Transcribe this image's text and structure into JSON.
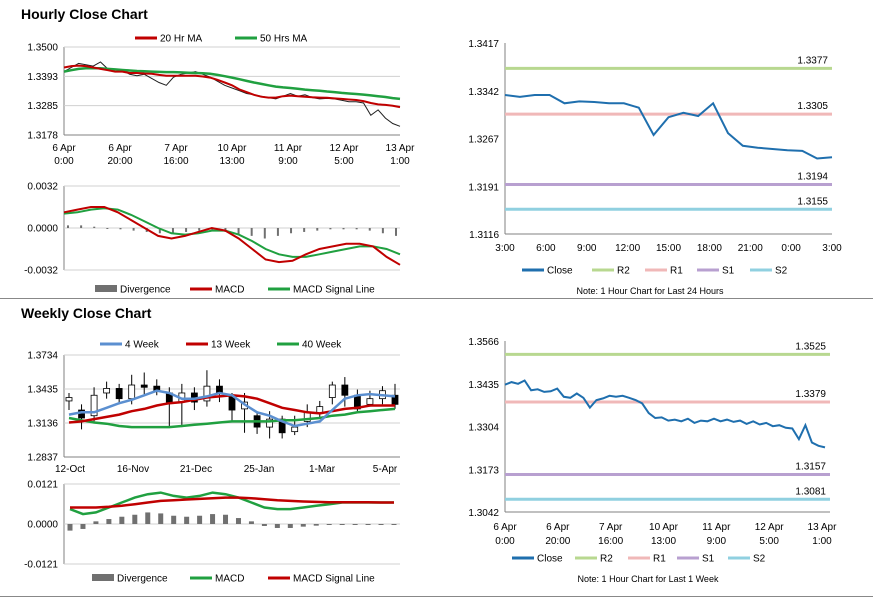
{
  "sections": {
    "hourly_title": "Hourly Close Chart",
    "weekly_title": "Weekly Close Chart"
  },
  "colors": {
    "close": "#1f6fae",
    "ma_red": "#c00000",
    "ma_green": "#20a040",
    "ma_blue": "#5b8fd0",
    "r2": "#b8d890",
    "r1": "#f0b8b8",
    "s1": "#b8a0d0",
    "s2": "#90d0e0",
    "divergence": "#707070",
    "grid": "#d0d0d0"
  },
  "chart_data": [
    {
      "id": "hourly-price",
      "type": "line",
      "legend": [
        "20 Hr MA",
        "50 Hrs MA"
      ],
      "y_ticks": [
        "1.3500",
        "1.3393",
        "1.3285",
        "1.3178"
      ],
      "ylim": [
        1.3178,
        1.35
      ],
      "x_ticks": [
        [
          "6 Apr",
          "0:00"
        ],
        [
          "6 Apr",
          "20:00"
        ],
        [
          "7 Apr",
          "16:00"
        ],
        [
          "10 Apr",
          "13:00"
        ],
        [
          "11 Apr",
          "9:00"
        ],
        [
          "12 Apr",
          "5:00"
        ],
        [
          "13 Apr",
          "1:00"
        ]
      ],
      "close": [
        1.341,
        1.3425,
        1.344,
        1.3435,
        1.343,
        1.3445,
        1.342,
        1.341,
        1.3415,
        1.34,
        1.3395,
        1.34,
        1.3385,
        1.337,
        1.336,
        1.339,
        1.34,
        1.3405,
        1.341,
        1.34,
        1.339,
        1.3375,
        1.336,
        1.335,
        1.334,
        1.333,
        1.3325,
        1.332,
        1.3315,
        1.331,
        1.332,
        1.333,
        1.332,
        1.3325,
        1.3315,
        1.331,
        1.3312,
        1.331,
        1.3305,
        1.33,
        1.33,
        1.3295,
        1.325,
        1.327,
        1.324,
        1.322,
        1.321
      ],
      "series": [
        {
          "name": "20 Hr MA",
          "values": [
            1.3425,
            1.343,
            1.3432,
            1.343,
            1.3425,
            1.342,
            1.3415,
            1.341,
            1.341,
            1.3405,
            1.3405,
            1.3403,
            1.3402,
            1.3398,
            1.3395,
            1.3395,
            1.3395,
            1.3395,
            1.3395,
            1.3392,
            1.3388,
            1.338,
            1.337,
            1.336,
            1.3345,
            1.3335,
            1.3325,
            1.3318,
            1.3315,
            1.3315,
            1.332,
            1.3322,
            1.332,
            1.3318,
            1.3316,
            1.3315,
            1.3314,
            1.3312,
            1.331,
            1.3308,
            1.3306,
            1.3302,
            1.3295,
            1.329,
            1.3288,
            1.3285,
            1.328
          ]
        },
        {
          "name": "50 Hrs MA",
          "values": [
            1.341,
            1.3415,
            1.342,
            1.3422,
            1.3422,
            1.3422,
            1.342,
            1.3418,
            1.3416,
            1.3414,
            1.3412,
            1.3411,
            1.341,
            1.3409,
            1.3408,
            1.3408,
            1.3407,
            1.3406,
            1.3405,
            1.3404,
            1.3402,
            1.3398,
            1.3393,
            1.3388,
            1.3382,
            1.3376,
            1.337,
            1.3365,
            1.336,
            1.3355,
            1.3352,
            1.335,
            1.3347,
            1.3344,
            1.3342,
            1.334,
            1.3337,
            1.3335,
            1.3332,
            1.333,
            1.3328,
            1.3326,
            1.3323,
            1.332,
            1.3317,
            1.3313,
            1.331
          ]
        }
      ]
    },
    {
      "id": "hourly-macd",
      "type": "line",
      "legend": [
        "Divergence",
        "MACD",
        "MACD Signal Line"
      ],
      "y_ticks": [
        "0.0032",
        "0.0000",
        "-0.0032"
      ],
      "ylim": [
        -0.0032,
        0.0032
      ],
      "macd": [
        0.0012,
        0.0014,
        0.0016,
        0.0016,
        0.0012,
        0.0006,
        0.0,
        -0.0006,
        -0.0008,
        -0.0006,
        -0.0003,
        0.0,
        -0.0002,
        -0.0008,
        -0.0016,
        -0.0024,
        -0.0026,
        -0.0025,
        -0.002,
        -0.0016,
        -0.0014,
        -0.0012,
        -0.0012,
        -0.0014,
        -0.0022,
        -0.0028
      ],
      "signal": [
        0.0011,
        0.0012,
        0.0014,
        0.0015,
        0.0014,
        0.001,
        0.0005,
        0.0,
        -0.0004,
        -0.0005,
        -0.0004,
        -0.0002,
        -0.0002,
        -0.0005,
        -0.001,
        -0.0016,
        -0.002,
        -0.0022,
        -0.0022,
        -0.002,
        -0.0018,
        -0.0016,
        -0.0014,
        -0.0014,
        -0.0016,
        -0.002
      ],
      "divergence": [
        0.0002,
        0.0002,
        0.0001,
        0.0,
        -0.0001,
        -0.0002,
        -0.0003,
        -0.0004,
        -0.0004,
        -0.0003,
        -0.0002,
        -0.0002,
        -0.0003,
        -0.0005,
        -0.0006,
        -0.0008,
        -0.0006,
        -0.0004,
        -0.0003,
        -0.0002,
        -0.0001,
        -0.0001,
        -0.0001,
        -0.0002,
        -0.0004,
        -0.0006
      ]
    },
    {
      "id": "hourly-levels",
      "type": "line",
      "y_ticks": [
        "1.3417",
        "1.3342",
        "1.3267",
        "1.3191",
        "1.3116"
      ],
      "ylim": [
        1.3116,
        1.3417
      ],
      "x_ticks": [
        "3:00",
        "6:00",
        "9:00",
        "12:00",
        "15:00",
        "18:00",
        "21:00",
        "0:00",
        "3:00"
      ],
      "levels": [
        {
          "name": "R2",
          "value": 1.3377,
          "label": "1.3377"
        },
        {
          "name": "R1",
          "value": 1.3305,
          "label": "1.3305"
        },
        {
          "name": "S1",
          "value": 1.3194,
          "label": "1.3194"
        },
        {
          "name": "S2",
          "value": 1.3155,
          "label": "1.3155"
        }
      ],
      "close": [
        1.3335,
        1.3332,
        1.3335,
        1.3335,
        1.3322,
        1.3325,
        1.3324,
        1.3322,
        1.3322,
        1.3315,
        1.3272,
        1.33,
        1.3307,
        1.3302,
        1.3322,
        1.3275,
        1.3255,
        1.3252,
        1.325,
        1.3248,
        1.3247,
        1.3235,
        1.3237
      ],
      "legend": [
        "Close",
        "R2",
        "R1",
        "S1",
        "S2"
      ],
      "note": "Note: 1 Hour Chart for Last 24 Hours"
    },
    {
      "id": "weekly-price",
      "type": "line",
      "legend": [
        "4 Week",
        "13 Week",
        "40 Week"
      ],
      "y_ticks": [
        "1.3734",
        "1.3435",
        "1.3136",
        "1.2837"
      ],
      "ylim": [
        1.2837,
        1.3734
      ],
      "x_ticks": [
        "12-Oct",
        "16-Nov",
        "21-Dec",
        "25-Jan",
        "1-Mar",
        "5-Apr"
      ],
      "candles": [
        {
          "o": 1.333,
          "c": 1.336,
          "h": 1.34,
          "l": 1.325
        },
        {
          "o": 1.325,
          "c": 1.318,
          "h": 1.33,
          "l": 1.308
        },
        {
          "o": 1.32,
          "c": 1.338,
          "h": 1.345,
          "l": 1.315
        },
        {
          "o": 1.34,
          "c": 1.344,
          "h": 1.35,
          "l": 1.335
        },
        {
          "o": 1.344,
          "c": 1.335,
          "h": 1.348,
          "l": 1.33
        },
        {
          "o": 1.335,
          "c": 1.347,
          "h": 1.356,
          "l": 1.33
        },
        {
          "o": 1.347,
          "c": 1.345,
          "h": 1.358,
          "l": 1.339
        },
        {
          "o": 1.346,
          "c": 1.342,
          "h": 1.352,
          "l": 1.338
        },
        {
          "o": 1.34,
          "c": 1.332,
          "h": 1.345,
          "l": 1.31
        },
        {
          "o": 1.332,
          "c": 1.34,
          "h": 1.348,
          "l": 1.31
        },
        {
          "o": 1.34,
          "c": 1.332,
          "h": 1.345,
          "l": 1.325
        },
        {
          "o": 1.333,
          "c": 1.346,
          "h": 1.36,
          "l": 1.328
        },
        {
          "o": 1.346,
          "c": 1.34,
          "h": 1.352,
          "l": 1.332
        },
        {
          "o": 1.338,
          "c": 1.325,
          "h": 1.34,
          "l": 1.315
        },
        {
          "o": 1.326,
          "c": 1.332,
          "h": 1.34,
          "l": 1.305
        },
        {
          "o": 1.32,
          "c": 1.31,
          "h": 1.324,
          "l": 1.304
        },
        {
          "o": 1.31,
          "c": 1.317,
          "h": 1.324,
          "l": 1.3
        },
        {
          "o": 1.317,
          "c": 1.305,
          "h": 1.32,
          "l": 1.3
        },
        {
          "o": 1.306,
          "c": 1.31,
          "h": 1.32,
          "l": 1.303
        },
        {
          "o": 1.315,
          "c": 1.323,
          "h": 1.33,
          "l": 1.31
        },
        {
          "o": 1.322,
          "c": 1.328,
          "h": 1.333,
          "l": 1.318
        },
        {
          "o": 1.336,
          "c": 1.347,
          "h": 1.35,
          "l": 1.33
        },
        {
          "o": 1.347,
          "c": 1.338,
          "h": 1.354,
          "l": 1.328
        },
        {
          "o": 1.338,
          "c": 1.326,
          "h": 1.343,
          "l": 1.324
        },
        {
          "o": 1.33,
          "c": 1.335,
          "h": 1.342,
          "l": 1.328
        },
        {
          "o": 1.335,
          "c": 1.342,
          "h": 1.346,
          "l": 1.33
        },
        {
          "o": 1.338,
          "c": 1.33,
          "h": 1.348,
          "l": 1.326
        }
      ],
      "series": [
        {
          "name": "4 Week",
          "values": [
            1.321,
            1.323,
            1.323,
            1.327,
            1.331,
            1.334,
            1.338,
            1.342,
            1.34,
            1.335,
            1.335,
            1.337,
            1.34,
            1.338,
            1.33,
            1.323,
            1.32,
            1.315,
            1.311,
            1.313,
            1.315,
            1.325,
            1.335,
            1.338,
            1.339,
            1.338,
            1.337
          ]
        },
        {
          "name": "13 Week",
          "values": [
            1.314,
            1.315,
            1.317,
            1.319,
            1.321,
            1.324,
            1.326,
            1.329,
            1.331,
            1.332,
            1.334,
            1.336,
            1.337,
            1.338,
            1.337,
            1.335,
            1.331,
            1.327,
            1.325,
            1.323,
            1.322,
            1.324,
            1.326,
            1.327,
            1.329,
            1.329,
            1.329
          ]
        },
        {
          "name": "40 Week",
          "values": [
            1.318,
            1.316,
            1.314,
            1.313,
            1.311,
            1.31,
            1.31,
            1.31,
            1.31,
            1.311,
            1.312,
            1.313,
            1.314,
            1.315,
            1.315,
            1.315,
            1.315,
            1.316,
            1.316,
            1.317,
            1.318,
            1.32,
            1.321,
            1.323,
            1.324,
            1.325,
            1.326
          ]
        }
      ]
    },
    {
      "id": "weekly-macd",
      "type": "line",
      "legend": [
        "Divergence",
        "MACD",
        "MACD Signal Line"
      ],
      "y_ticks": [
        "0.0121",
        "0.0000",
        "-0.0121"
      ],
      "ylim": [
        -0.0121,
        0.0121
      ],
      "macd": [
        0.0045,
        0.003,
        0.0035,
        0.005,
        0.0065,
        0.008,
        0.009,
        0.0095,
        0.0085,
        0.008,
        0.0085,
        0.0095,
        0.009,
        0.008,
        0.0065,
        0.005,
        0.0045,
        0.0045,
        0.005,
        0.0055,
        0.006,
        0.0065,
        0.0065,
        0.0065,
        0.0065,
        0.0065
      ],
      "signal": [
        0.005,
        0.005,
        0.005,
        0.0052,
        0.0055,
        0.006,
        0.0065,
        0.007,
        0.0072,
        0.0074,
        0.0076,
        0.0078,
        0.008,
        0.008,
        0.0078,
        0.0075,
        0.0072,
        0.007,
        0.0068,
        0.0067,
        0.0066,
        0.0066,
        0.0066,
        0.0066,
        0.0065,
        0.0065
      ],
      "divergence": [
        -0.002,
        -0.0015,
        0.0008,
        0.0015,
        0.0022,
        0.0028,
        0.0035,
        0.0032,
        0.0025,
        0.0022,
        0.0025,
        0.003,
        0.0028,
        0.0018,
        0.0008,
        -0.0006,
        -0.0012,
        -0.0012,
        -0.0008,
        -0.0005,
        -0.0003,
        -0.0002,
        -0.0002,
        -0.0001,
        0.0,
        0.0
      ]
    },
    {
      "id": "weekly-levels",
      "type": "line",
      "y_ticks": [
        "1.3566",
        "1.3435",
        "1.3304",
        "1.3173",
        "1.3042"
      ],
      "ylim": [
        1.3042,
        1.3566
      ],
      "x_ticks": [
        [
          "6 Apr",
          "0:00"
        ],
        [
          "6 Apr",
          "20:00"
        ],
        [
          "7 Apr",
          "16:00"
        ],
        [
          "10 Apr",
          "13:00"
        ],
        [
          "11 Apr",
          "9:00"
        ],
        [
          "12 Apr",
          "5:00"
        ],
        [
          "13 Apr",
          "1:00"
        ]
      ],
      "levels": [
        {
          "name": "R2",
          "value": 1.3525,
          "label": "1.3525"
        },
        {
          "name": "R1",
          "value": 1.3379,
          "label": "1.3379"
        },
        {
          "name": "S1",
          "value": 1.3157,
          "label": "1.3157"
        },
        {
          "name": "S2",
          "value": 1.3081,
          "label": "1.3081"
        }
      ],
      "close": [
        1.3432,
        1.344,
        1.3435,
        1.3445,
        1.3415,
        1.3418,
        1.341,
        1.3412,
        1.342,
        1.3395,
        1.3392,
        1.3405,
        1.3392,
        1.3362,
        1.3385,
        1.339,
        1.3398,
        1.3395,
        1.3398,
        1.3392,
        1.3385,
        1.3375,
        1.3345,
        1.333,
        1.3332,
        1.3322,
        1.3325,
        1.332,
        1.3328,
        1.3315,
        1.3322,
        1.332,
        1.3328,
        1.332,
        1.3325,
        1.3318,
        1.3322,
        1.3312,
        1.332,
        1.331,
        1.3315,
        1.3305,
        1.3308,
        1.33,
        1.3298,
        1.3265,
        1.3308,
        1.3255,
        1.3245,
        1.324
      ],
      "legend": [
        "Close",
        "R2",
        "R1",
        "S1",
        "S2"
      ],
      "note": "Note: 1 Hour Chart for Last 1 Week"
    }
  ]
}
